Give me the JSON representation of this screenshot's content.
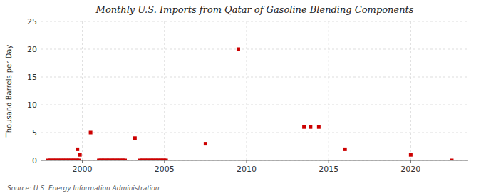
{
  "chart_data": {
    "type": "scatter",
    "title": "Monthly U.S. Imports from Qatar of Gasoline Blending Components",
    "ylabel": "Thousand Barrels per Day",
    "source": "Source: U.S. Energy Information Administration",
    "color": "#cc0000",
    "marker": "square",
    "grid": true,
    "xlim": [
      1997.5,
      2023.5
    ],
    "xticks": [
      2000,
      2005,
      2010,
      2015,
      2020
    ],
    "ylim": [
      0,
      25
    ],
    "yticks": [
      0,
      5,
      10,
      15,
      20,
      25
    ],
    "x": [
      1997.9,
      1998.0,
      1998.1,
      1998.2,
      1998.3,
      1998.4,
      1998.5,
      1998.6,
      1998.7,
      1998.8,
      1998.9,
      1999.0,
      1999.1,
      1999.2,
      1999.3,
      1999.4,
      1999.5,
      1999.6,
      1999.7,
      1999.8,
      1999.7,
      1999.85,
      2000.5,
      2001.0,
      2001.1,
      2001.2,
      2001.3,
      2001.4,
      2001.5,
      2001.6,
      2001.7,
      2001.8,
      2001.9,
      2002.0,
      2002.1,
      2002.2,
      2002.3,
      2002.4,
      2002.5,
      2002.6,
      2003.2,
      2003.5,
      2003.6,
      2003.7,
      2003.8,
      2003.9,
      2004.0,
      2004.1,
      2004.2,
      2004.3,
      2004.4,
      2004.5,
      2004.6,
      2004.7,
      2004.8,
      2004.9,
      2005.0,
      2005.1,
      2007.5,
      2009.5,
      2013.5,
      2013.9,
      2014.4,
      2016.0,
      2020.0,
      2022.5
    ],
    "values": [
      0,
      0,
      0,
      0,
      0,
      0,
      0,
      0,
      0,
      0,
      0,
      0,
      0,
      0,
      0,
      0,
      0,
      0,
      0,
      0,
      2,
      1,
      5,
      0,
      0,
      0,
      0,
      0,
      0,
      0,
      0,
      0,
      0,
      0,
      0,
      0,
      0,
      0,
      0,
      0,
      4,
      0,
      0,
      0,
      0,
      0,
      0,
      0,
      0,
      0,
      0,
      0,
      0,
      0,
      0,
      0,
      0,
      0,
      3,
      20,
      6,
      6,
      6,
      2,
      1,
      0
    ]
  }
}
